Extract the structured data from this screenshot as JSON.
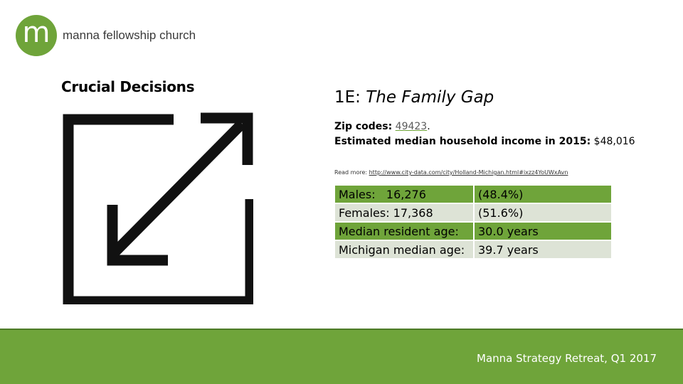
{
  "logo": {
    "mark": "m",
    "name": "manna fellowship church"
  },
  "left_title": "Crucial Decisions",
  "icon": "expand-arrow-icon",
  "slide": {
    "title_prefix": "1E:",
    "title_emphasis": "The Family Gap"
  },
  "info": {
    "zip_label": "Zip codes:",
    "zip_value": "49423",
    "zip_suffix": ".",
    "income_label": "Estimated median household income in 2015:",
    "income_value": "$48,016"
  },
  "read_more": {
    "label": "Read more:",
    "url": "http://www.city-data.com/city/Holland-Michigan.html#ixzz4YoUWxAvn"
  },
  "stats": [
    {
      "label": "Males:   16,276",
      "value": "(48.4%)"
    },
    {
      "label": "Females: 17,368",
      "value": "(51.6%)"
    },
    {
      "label": "Median resident age:",
      "value": "30.0 years"
    },
    {
      "label": "Michigan median age:",
      "value": "39.7 years"
    }
  ],
  "footer": {
    "text": "Manna Strategy Retreat, Q1 2017"
  },
  "colors": {
    "accent": "#6fa43a",
    "row_alt": "#dde3d6"
  }
}
